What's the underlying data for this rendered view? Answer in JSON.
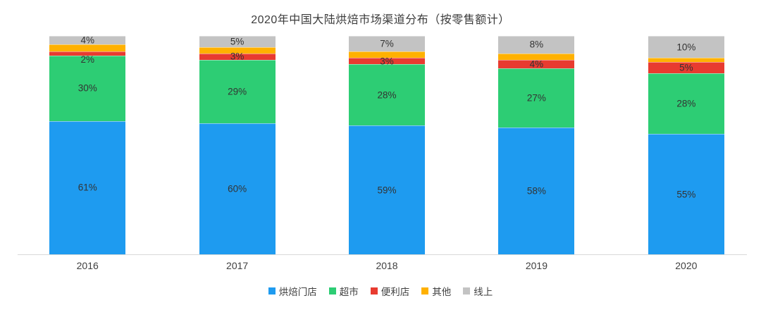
{
  "chart_data": {
    "type": "bar",
    "variant": "stacked-100",
    "title": "2020年中国大陆烘焙市场渠道分布（按零售额计）",
    "categories": [
      "2016",
      "2017",
      "2018",
      "2019",
      "2020"
    ],
    "series": [
      {
        "name": "烘焙门店",
        "color": "#1e9bf0",
        "values": [
          61,
          60,
          59,
          58,
          55
        ],
        "labels": [
          "61%",
          "60%",
          "59%",
          "58%",
          "55%"
        ]
      },
      {
        "name": "超市",
        "color": "#2dcd74",
        "values": [
          30,
          29,
          28,
          27,
          28
        ],
        "labels": [
          "30%",
          "29%",
          "28%",
          "27%",
          "28%"
        ]
      },
      {
        "name": "便利店",
        "color": "#e83b30",
        "values": [
          2,
          3,
          3,
          4,
          5
        ],
        "labels": [
          "2%",
          "3%",
          "3%",
          "4%",
          "5%"
        ]
      },
      {
        "name": "其他",
        "color": "#ffb100",
        "values": [
          3,
          3,
          3,
          3,
          2
        ],
        "labels": [
          "",
          "",
          "",
          "",
          ""
        ]
      },
      {
        "name": "线上",
        "color": "#c3c3c3",
        "values": [
          4,
          5,
          7,
          8,
          10
        ],
        "labels": [
          "4%",
          "5%",
          "7%",
          "8%",
          "10%"
        ]
      }
    ],
    "ylim": [
      0,
      100
    ],
    "grid": false,
    "legend_position": "bottom",
    "axis_line_color": "#d9d9d9",
    "label_color": "#333333"
  }
}
